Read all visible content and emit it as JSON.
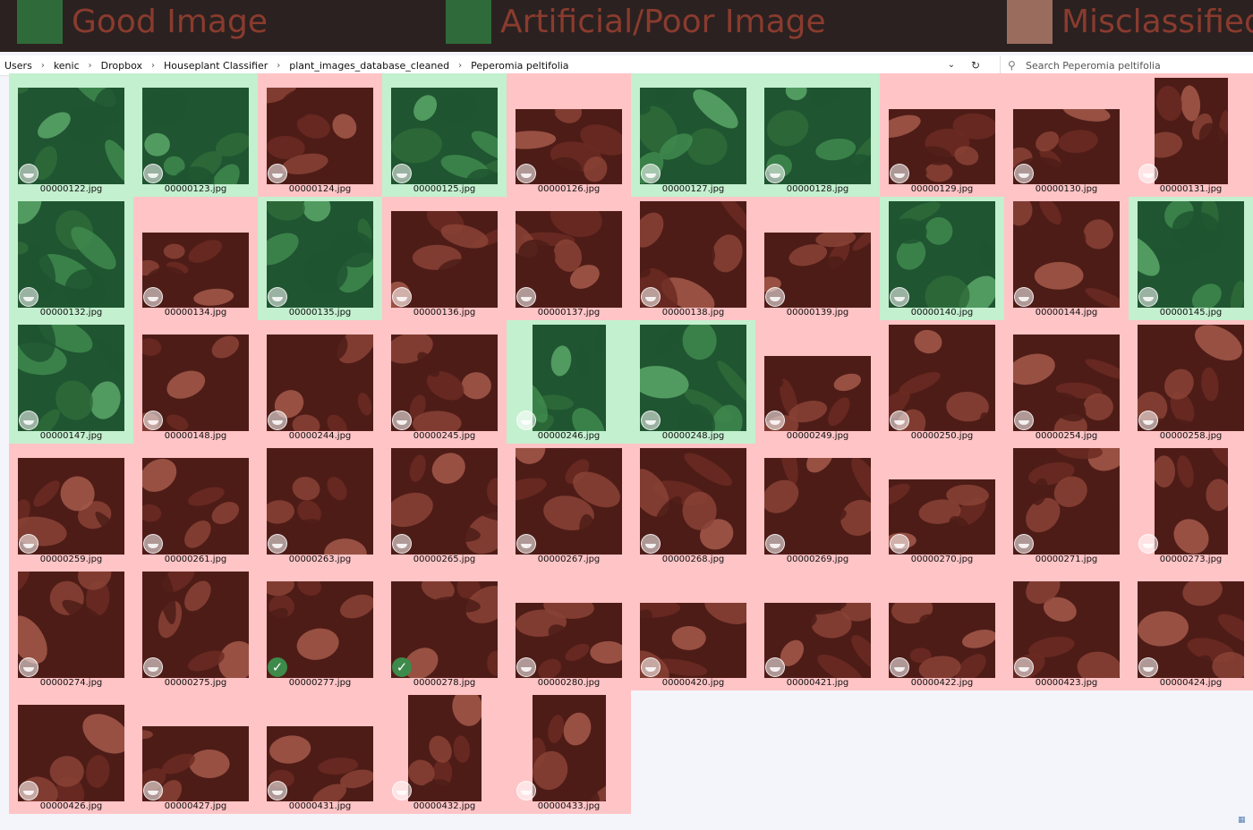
{
  "legend": {
    "good_label": "Good Image",
    "poor_label": "Artificial/Poor Image",
    "misclassified_label": "Misclassified",
    "colors": {
      "good": "#2f6b3a",
      "poor": "#2f6b3a",
      "misclassified": "#9a6c5e"
    }
  },
  "address_bar": {
    "breadcrumbs": [
      "Users",
      "kenic",
      "Dropbox",
      "Houseplant Classifier",
      "plant_images_database_cleaned",
      "Peperomia peltifolia"
    ],
    "dropdown_icon": "chevron-down-icon",
    "refresh_icon": "refresh-icon"
  },
  "search": {
    "placeholder": "Search Peperomia peltifolia",
    "icon": "search-icon"
  },
  "tile_colors": {
    "good": "#c3f0cf",
    "poor": "#ffc4c6"
  },
  "files": [
    {
      "name": "00000122.jpg",
      "status": "good",
      "shape": "landscape"
    },
    {
      "name": "00000123.jpg",
      "status": "good",
      "shape": "landscape"
    },
    {
      "name": "00000124.jpg",
      "status": "poor",
      "shape": "landscape"
    },
    {
      "name": "00000125.jpg",
      "status": "good",
      "shape": "landscape"
    },
    {
      "name": "00000126.jpg",
      "status": "poor",
      "shape": "wide"
    },
    {
      "name": "00000127.jpg",
      "status": "good",
      "shape": "landscape"
    },
    {
      "name": "00000128.jpg",
      "status": "good",
      "shape": "landscape"
    },
    {
      "name": "00000129.jpg",
      "status": "poor",
      "shape": "wide"
    },
    {
      "name": "00000130.jpg",
      "status": "poor",
      "shape": "wide"
    },
    {
      "name": "00000131.jpg",
      "status": "poor",
      "shape": "tall"
    },
    {
      "name": "00000132.jpg",
      "status": "good",
      "shape": "square"
    },
    {
      "name": "00000134.jpg",
      "status": "poor",
      "shape": "wide"
    },
    {
      "name": "00000135.jpg",
      "status": "good",
      "shape": "square"
    },
    {
      "name": "00000136.jpg",
      "status": "poor",
      "shape": "landscape"
    },
    {
      "name": "00000137.jpg",
      "status": "poor",
      "shape": "landscape"
    },
    {
      "name": "00000138.jpg",
      "status": "poor",
      "shape": "square"
    },
    {
      "name": "00000139.jpg",
      "status": "poor",
      "shape": "wide"
    },
    {
      "name": "00000140.jpg",
      "status": "good",
      "shape": "square"
    },
    {
      "name": "00000144.jpg",
      "status": "poor",
      "shape": "square"
    },
    {
      "name": "00000145.jpg",
      "status": "good",
      "shape": "square"
    },
    {
      "name": "00000147.jpg",
      "status": "good",
      "shape": "square"
    },
    {
      "name": "00000148.jpg",
      "status": "poor",
      "shape": "landscape"
    },
    {
      "name": "00000244.jpg",
      "status": "poor",
      "shape": "landscape"
    },
    {
      "name": "00000245.jpg",
      "status": "poor",
      "shape": "landscape"
    },
    {
      "name": "00000246.jpg",
      "status": "good",
      "shape": "tall"
    },
    {
      "name": "00000248.jpg",
      "status": "good",
      "shape": "square"
    },
    {
      "name": "00000249.jpg",
      "status": "poor",
      "shape": "wide"
    },
    {
      "name": "00000250.jpg",
      "status": "poor",
      "shape": "square"
    },
    {
      "name": "00000254.jpg",
      "status": "poor",
      "shape": "landscape"
    },
    {
      "name": "00000258.jpg",
      "status": "poor",
      "shape": "square"
    },
    {
      "name": "00000259.jpg",
      "status": "poor",
      "shape": "landscape"
    },
    {
      "name": "00000261.jpg",
      "status": "poor",
      "shape": "landscape"
    },
    {
      "name": "00000263.jpg",
      "status": "poor",
      "shape": "square"
    },
    {
      "name": "00000265.jpg",
      "status": "poor",
      "shape": "square"
    },
    {
      "name": "00000267.jpg",
      "status": "poor",
      "shape": "square"
    },
    {
      "name": "00000268.jpg",
      "status": "poor",
      "shape": "square"
    },
    {
      "name": "00000269.jpg",
      "status": "poor",
      "shape": "landscape"
    },
    {
      "name": "00000270.jpg",
      "status": "poor",
      "shape": "wide"
    },
    {
      "name": "00000271.jpg",
      "status": "poor",
      "shape": "square"
    },
    {
      "name": "00000273.jpg",
      "status": "poor",
      "shape": "tall"
    },
    {
      "name": "00000274.jpg",
      "status": "poor",
      "shape": "square"
    },
    {
      "name": "00000275.jpg",
      "status": "poor",
      "shape": "square"
    },
    {
      "name": "00000277.jpg",
      "status": "poor",
      "shape": "landscape",
      "checked": true
    },
    {
      "name": "00000278.jpg",
      "status": "poor",
      "shape": "landscape",
      "checked": true
    },
    {
      "name": "00000280.jpg",
      "status": "poor",
      "shape": "wide"
    },
    {
      "name": "00000420.jpg",
      "status": "poor",
      "shape": "wide"
    },
    {
      "name": "00000421.jpg",
      "status": "poor",
      "shape": "wide"
    },
    {
      "name": "00000422.jpg",
      "status": "poor",
      "shape": "wide"
    },
    {
      "name": "00000423.jpg",
      "status": "poor",
      "shape": "landscape"
    },
    {
      "name": "00000424.jpg",
      "status": "poor",
      "shape": "landscape"
    },
    {
      "name": "00000426.jpg",
      "status": "poor",
      "shape": "landscape"
    },
    {
      "name": "00000427.jpg",
      "status": "poor",
      "shape": "wide"
    },
    {
      "name": "00000431.jpg",
      "status": "poor",
      "shape": "wide"
    },
    {
      "name": "00000432.jpg",
      "status": "poor",
      "shape": "tall"
    },
    {
      "name": "00000433.jpg",
      "status": "poor",
      "shape": "tall"
    }
  ]
}
